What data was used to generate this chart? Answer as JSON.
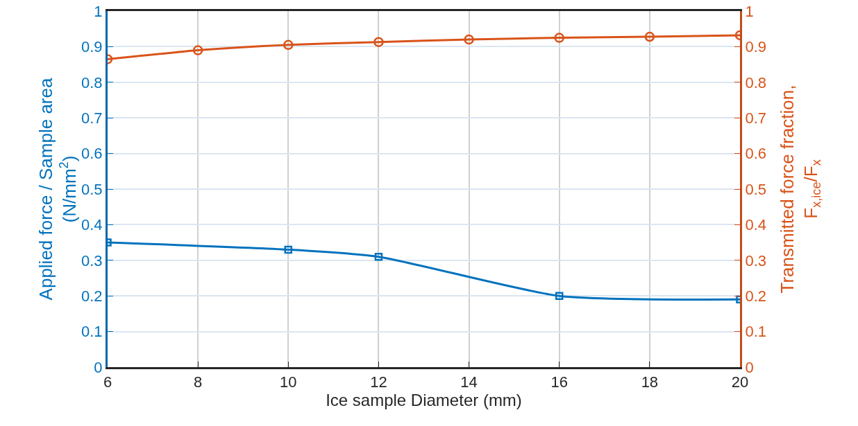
{
  "chart_data": {
    "type": "line",
    "xlabel": "Ice sample Diameter (mm)",
    "ylabel": "Applied force / Sample area\n(N/mm$^{2}$)",
    "y2label": "Transmitted force fraction,\nF$_{x,ice}$/F$_{x}$",
    "xlim": [
      6,
      20
    ],
    "xticks": [
      6,
      8,
      10,
      12,
      14,
      16,
      18,
      20
    ],
    "ylim": [
      0,
      1
    ],
    "yticks": [
      0,
      0.1,
      0.2,
      0.3,
      0.4,
      0.5,
      0.6,
      0.7,
      0.8,
      0.9,
      1
    ],
    "y2lim": [
      0,
      1
    ],
    "y2ticks": [
      0,
      0.1,
      0.2,
      0.3,
      0.4,
      0.5,
      0.6,
      0.7,
      0.8,
      0.9,
      1
    ],
    "grid": true,
    "line_style": "solid",
    "series": [
      {
        "color": "#0072bd",
        "marker": "square",
        "x": [
          6,
          10,
          12,
          16,
          20
        ],
        "values": [
          0.35,
          0.33,
          0.31,
          0.2,
          0.19
        ]
      },
      {
        "color": "#d95319",
        "marker": "circle",
        "axis": "y2",
        "x": [
          6,
          8,
          10,
          12,
          14,
          16,
          18,
          20
        ],
        "values": [
          0.865,
          0.89,
          0.905,
          0.913,
          0.92,
          0.925,
          0.928,
          0.932
        ]
      }
    ]
  }
}
